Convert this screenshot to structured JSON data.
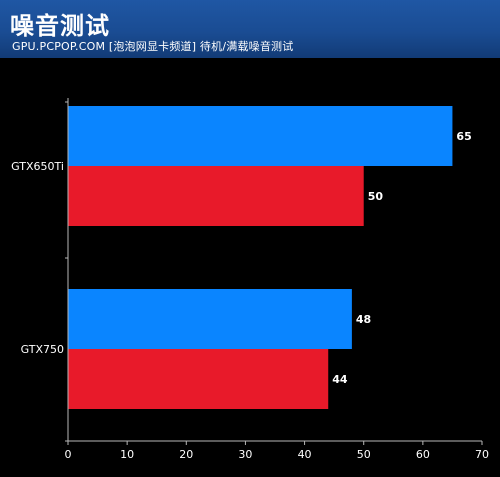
{
  "header": {
    "title": "噪音测试",
    "subtitle": "GPU.PCPOP.COM [泡泡网显卡频道] 待机/满载噪音测试"
  },
  "colors": {
    "background": "#000000",
    "header_blue": "#1a4c93",
    "series_blue": "#0a85ff",
    "series_red": "#e81a2a",
    "axis": "#b8b8b8",
    "text": "#ffffff"
  },
  "chart_data": {
    "type": "bar",
    "orientation": "horizontal",
    "categories": [
      "GTX650Ti",
      "GTX750"
    ],
    "series": [
      {
        "values": [
          65,
          48
        ],
        "color": "#0a85ff"
      },
      {
        "values": [
          50,
          44
        ],
        "color": "#e81a2a"
      }
    ],
    "xlim": [
      0,
      70
    ],
    "x_ticks": [
      0,
      10,
      20,
      30,
      40,
      50,
      60,
      70
    ],
    "data_labels": true,
    "legend": "none",
    "grid": false
  }
}
